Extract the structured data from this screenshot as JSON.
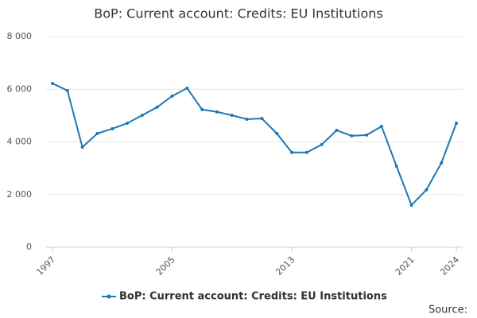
{
  "chart_data": {
    "type": "line",
    "title": "BoP: Current account: Credits: EU Institutions",
    "x": [
      1997,
      1998,
      1999,
      2000,
      2001,
      2002,
      2003,
      2004,
      2005,
      2006,
      2007,
      2008,
      2009,
      2010,
      2011,
      2012,
      2013,
      2014,
      2015,
      2016,
      2017,
      2018,
      2019,
      2020,
      2021,
      2022,
      2023,
      2024
    ],
    "series": [
      {
        "name": "BoP: Current account: Credits: EU Institutions",
        "color": "#1f77b4",
        "values": [
          6220,
          5950,
          3800,
          4320,
          4500,
          4710,
          5010,
          5320,
          5740,
          6040,
          5230,
          5140,
          5010,
          4860,
          4890,
          4320,
          3600,
          3600,
          3900,
          4440,
          4230,
          4260,
          4590,
          3080,
          1600,
          2180,
          3200,
          4710
        ]
      }
    ],
    "xlim": [
      1997,
      2024
    ],
    "xticks": [
      1997,
      2005,
      2013,
      2021,
      2024
    ],
    "ylim": [
      0,
      8000
    ],
    "yticks": [
      0,
      {
        "value": 2000,
        "label": "2 000"
      },
      {
        "value": 4000,
        "label": "4 000"
      },
      {
        "value": 6000,
        "label": "6 000"
      },
      {
        "value": 8000,
        "label": "8 000"
      }
    ],
    "grid": true,
    "source": "Source:"
  }
}
